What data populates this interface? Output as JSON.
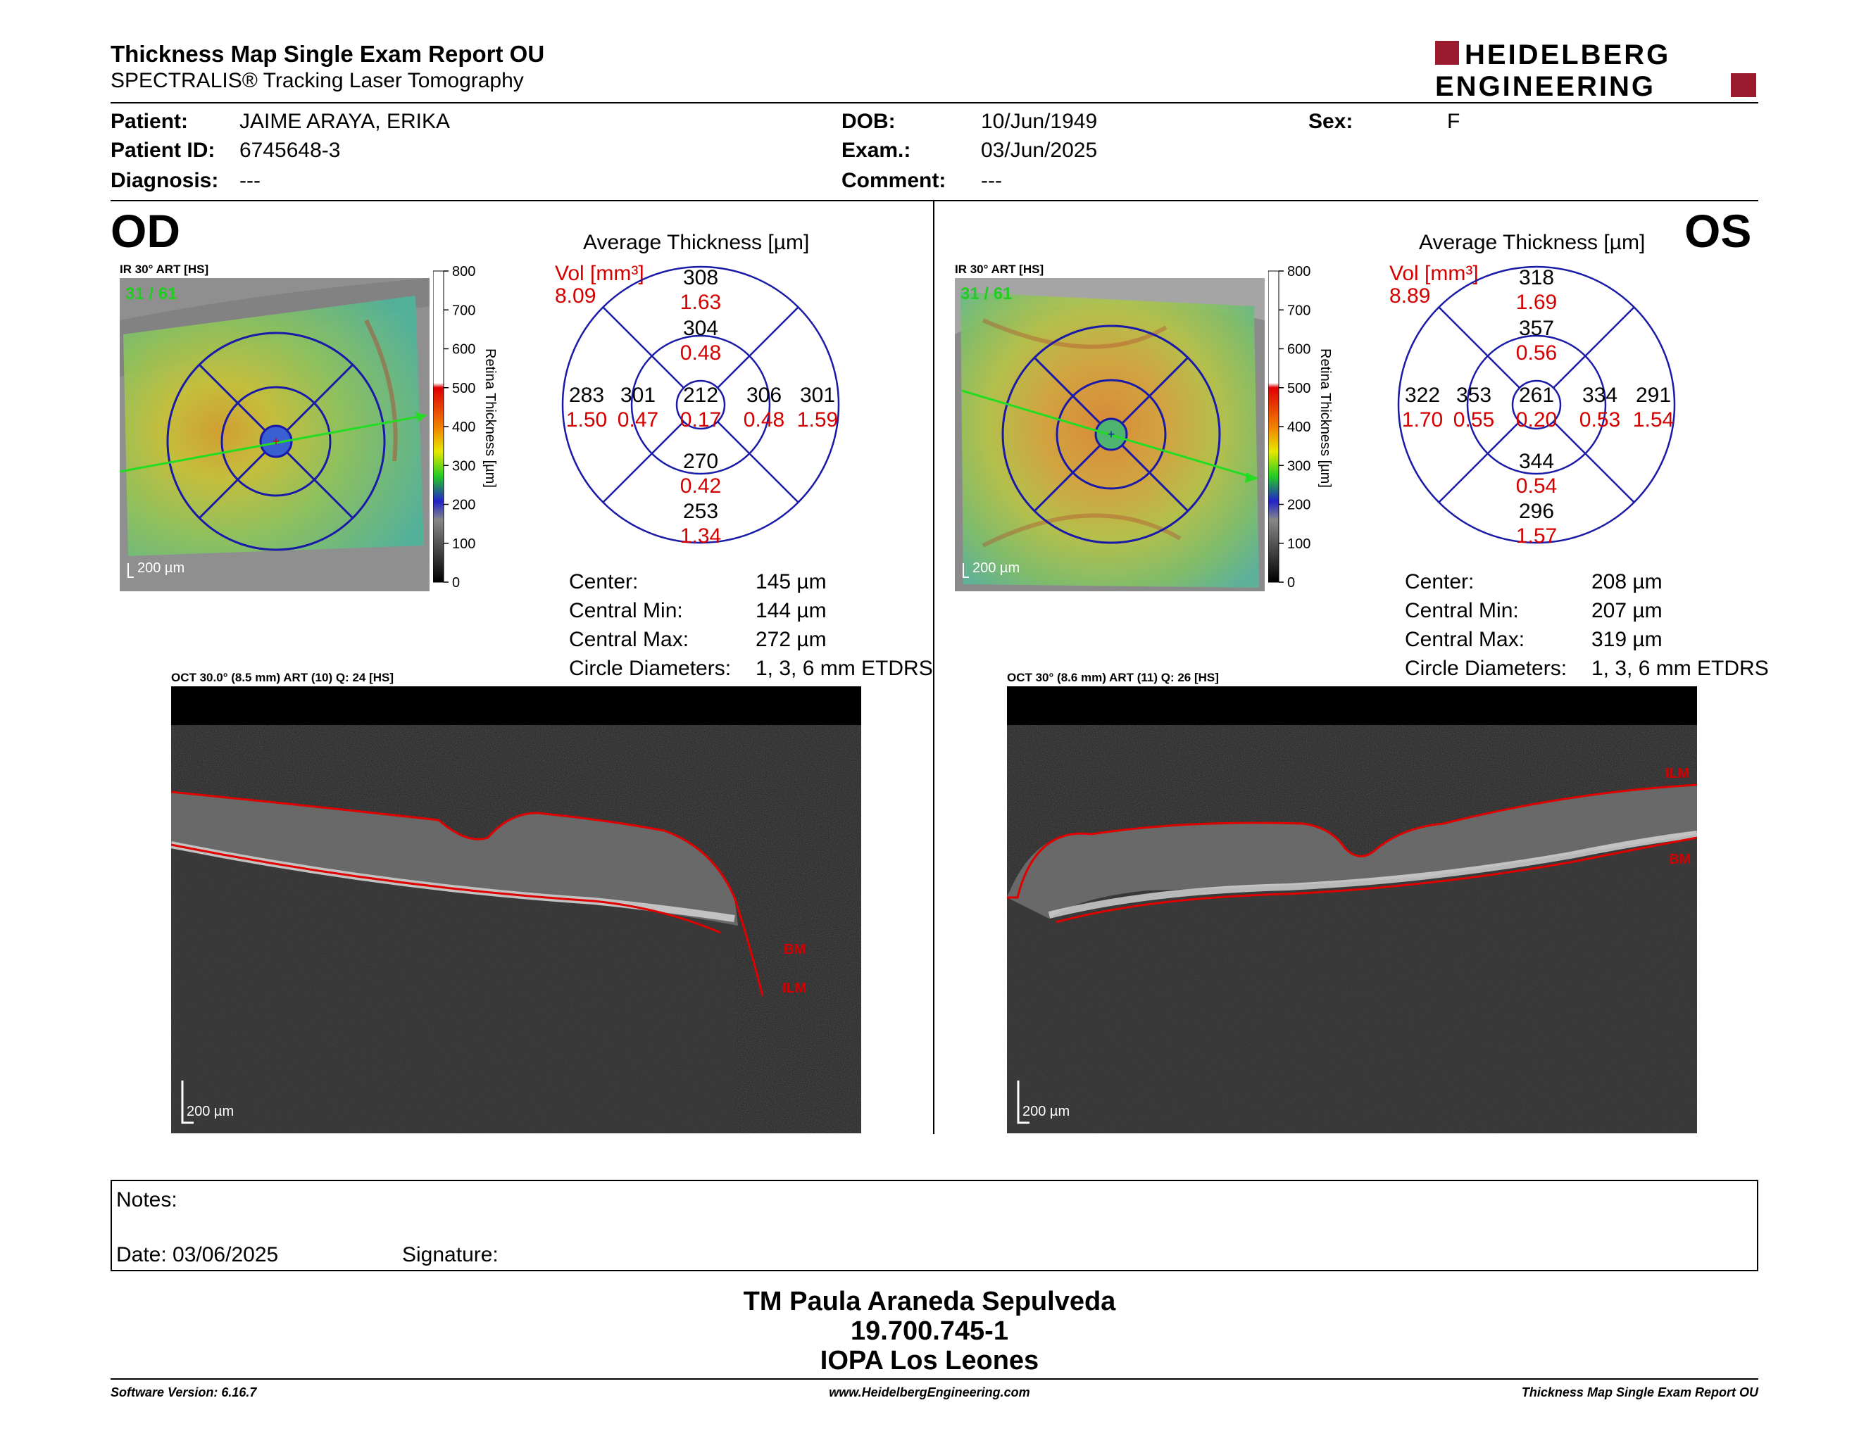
{
  "header": {
    "title": "Thickness Map Single Exam Report OU",
    "subtitle": "SPECTRALIS® Tracking Laser Tomography",
    "logo_line1": "HEIDELBERG",
    "logo_line2": "ENGINEERING"
  },
  "patient": {
    "patient_label": "Patient:",
    "patient_value": "JAIME ARAYA, ERIKA",
    "id_label": "Patient ID:",
    "id_value": "6745648-3",
    "diag_label": "Diagnosis:",
    "diag_value": "---",
    "dob_label": "DOB:",
    "dob_value": "10/Jun/1949",
    "exam_label": "Exam.:",
    "exam_value": "03/Jun/2025",
    "comment_label": "Comment:",
    "comment_value": "---",
    "sex_label": "Sex:",
    "sex_value": "F"
  },
  "od": {
    "eye": "OD",
    "fundus_label": "IR 30° ART [HS]",
    "frame_count": "31 / 61",
    "scale": "200 µm",
    "avg_title": "Average Thickness [µm]",
    "vol_label": "Vol [mm³]",
    "vol_total": "8.09",
    "sectors": {
      "outer_sup": {
        "t": "308",
        "v": "1.63"
      },
      "inner_sup": {
        "t": "304",
        "v": "0.48"
      },
      "outer_temp": {
        "t": "283",
        "v": "1.50"
      },
      "inner_temp": {
        "t": "301",
        "v": "0.47"
      },
      "center": {
        "t": "212",
        "v": "0.17"
      },
      "inner_nas": {
        "t": "306",
        "v": "0.48"
      },
      "outer_nas": {
        "t": "301",
        "v": "1.59"
      },
      "inner_inf": {
        "t": "270",
        "v": "0.42"
      },
      "outer_inf": {
        "t": "253",
        "v": "1.34"
      }
    },
    "stats": [
      {
        "label": "Center:",
        "value": "145 µm"
      },
      {
        "label": "Central Min:",
        "value": "144 µm"
      },
      {
        "label": "Central Max:",
        "value": "272 µm"
      },
      {
        "label": "Circle Diameters:",
        "value": "1, 3, 6 mm ETDRS"
      }
    ],
    "oct_label": "OCT 30.0° (8.5 mm) ART (10) Q: 24 [HS]",
    "oct_scale": "200 µm",
    "ilm": "ILM",
    "bm": "BM"
  },
  "os": {
    "eye": "OS",
    "fundus_label": "IR 30° ART [HS]",
    "frame_count": "31 / 61",
    "scale": "200 µm",
    "avg_title": "Average Thickness [µm]",
    "vol_label": "Vol [mm³]",
    "vol_total": "8.89",
    "sectors": {
      "outer_sup": {
        "t": "318",
        "v": "1.69"
      },
      "inner_sup": {
        "t": "357",
        "v": "0.56"
      },
      "outer_temp": {
        "t": "322",
        "v": "1.70"
      },
      "inner_temp": {
        "t": "353",
        "v": "0.55"
      },
      "center": {
        "t": "261",
        "v": "0.20"
      },
      "inner_nas": {
        "t": "334",
        "v": "0.53"
      },
      "outer_nas": {
        "t": "291",
        "v": "1.54"
      },
      "inner_inf": {
        "t": "344",
        "v": "0.54"
      },
      "outer_inf": {
        "t": "296",
        "v": "1.57"
      }
    },
    "stats": [
      {
        "label": "Center:",
        "value": "208 µm"
      },
      {
        "label": "Central Min:",
        "value": "207 µm"
      },
      {
        "label": "Central Max:",
        "value": "319 µm"
      },
      {
        "label": "Circle Diameters:",
        "value": "1, 3, 6 mm ETDRS"
      }
    ],
    "oct_label": "OCT 30° (8.6 mm) ART (11) Q: 26 [HS]",
    "oct_scale": "200 µm",
    "ilm": "ILM",
    "bm": "BM"
  },
  "colorbar": {
    "ticks": [
      "800",
      "700",
      "600",
      "500",
      "400",
      "300",
      "200",
      "100",
      "0"
    ],
    "title": "Retina Thickness [µm]"
  },
  "notes": {
    "notes_label": "Notes:",
    "date_label": "Date: 03/06/2025",
    "signature_label": "Signature:"
  },
  "signature": {
    "name": "TM Paula Araneda Sepulveda",
    "rut": "19.700.745-1",
    "place": "IOPA Los Leones"
  },
  "footer": {
    "software": "Software Version: 6.16.7",
    "url": "www.HeidelbergEngineering.com",
    "report": "Thickness Map Single Exam Report OU"
  },
  "colors": {
    "chart_blue": "#1a1aa8",
    "volume_red": "#d40000",
    "logo_red": "#9b1b2e",
    "frame_green": "#22cc22"
  }
}
